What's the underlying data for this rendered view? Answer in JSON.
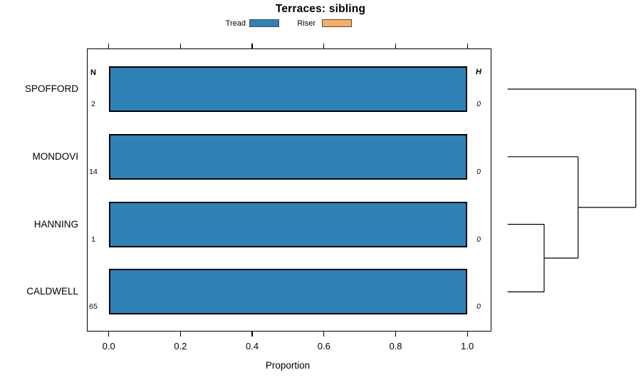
{
  "figure": {
    "title": "Terraces: sibling",
    "background": "#ffffff"
  },
  "legend": {
    "items": [
      {
        "label": "Tread",
        "color": "#2E82B8"
      },
      {
        "label": "Riser",
        "color": "#FBAD61"
      }
    ]
  },
  "chart_data": {
    "type": "bar",
    "orientation": "horizontal",
    "title": "Terraces: sibling",
    "xlabel": "Proportion",
    "xlim": [
      0,
      1
    ],
    "xticks": [
      0,
      0.2,
      0.4,
      0.6,
      0.8,
      1.0
    ],
    "xtick_labels": [
      "0.0",
      "0.2",
      "0.4",
      "0.6",
      "0.8",
      "1.0"
    ],
    "grid": false,
    "legend_position": "top",
    "categories": [
      "SPOFFORD",
      "MONDOVI",
      "HANNING",
      "CALDWELL"
    ],
    "series": [
      {
        "name": "Tread",
        "color": "#2E82B8",
        "values": [
          1.0,
          1.0,
          1.0,
          1.0
        ]
      },
      {
        "name": "Riser",
        "color": "#FBAD61",
        "values": [
          0,
          0,
          0,
          0
        ]
      }
    ],
    "columns": {
      "n": {
        "header": "N",
        "values": [
          "2",
          "14",
          "1",
          "65"
        ]
      },
      "h": {
        "header": "H",
        "values": [
          "0",
          "0",
          "0",
          "0"
        ]
      }
    },
    "dendrogram": {
      "position": "right",
      "orientation": "root-right",
      "root": {
        "height": 1.0,
        "children": [
          {
            "leaf": "SPOFFORD"
          },
          {
            "height": 0.55,
            "children": [
              {
                "leaf": "MONDOVI"
              },
              {
                "height": 0.285,
                "children": [
                  {
                    "leaf": "HANNING"
                  },
                  {
                    "leaf": "CALDWELL"
                  }
                ]
              }
            ]
          }
        ]
      }
    }
  }
}
